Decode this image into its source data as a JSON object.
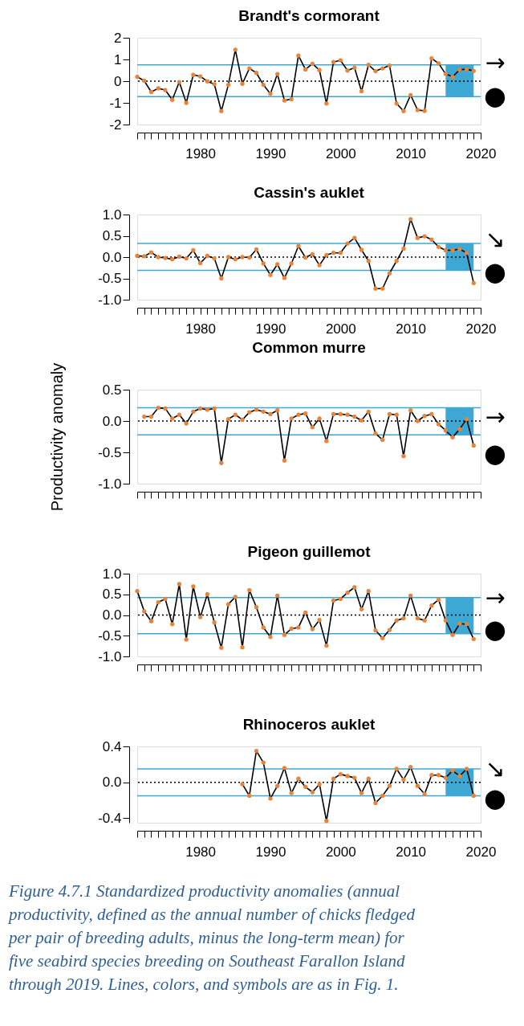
{
  "chart_data": [
    {
      "type": "line",
      "title": "Brandt's cormorant",
      "x": [
        1971,
        1972,
        1973,
        1974,
        1975,
        1976,
        1977,
        1978,
        1979,
        1980,
        1981,
        1982,
        1983,
        1984,
        1985,
        1986,
        1987,
        1988,
        1989,
        1990,
        1991,
        1992,
        1993,
        1994,
        1995,
        1996,
        1997,
        1998,
        1999,
        2000,
        2001,
        2002,
        2003,
        2004,
        2005,
        2006,
        2007,
        2008,
        2009,
        2010,
        2011,
        2012,
        2013,
        2014,
        2015,
        2016,
        2017,
        2018,
        2019
      ],
      "series": [
        {
          "type": "line",
          "color": "#000000",
          "values": [
            0.2,
            0.02,
            -0.5,
            -0.33,
            -0.41,
            -0.86,
            -0.04,
            -1.0,
            0.29,
            0.22,
            -0.01,
            -0.14,
            -1.38,
            -0.17,
            1.45,
            -0.12,
            0.59,
            0.38,
            -0.17,
            -0.58,
            0.33,
            -0.89,
            -0.83,
            1.18,
            0.54,
            0.8,
            0.51,
            -1.03,
            0.88,
            0.96,
            0.49,
            0.62,
            -0.46,
            0.75,
            0.46,
            0.59,
            0.72,
            -1.03,
            -1.38,
            -0.64,
            -1.33,
            -1.37,
            1.05,
            0.82,
            0.33,
            0.2,
            0.53,
            0.55,
            0.47
          ],
          "colors": [
            "#e8833a",
            "#e8833a",
            "#e8833a",
            "#e8833a",
            "#e8833a",
            "#e8833a",
            "#e8833a",
            "#e8833a",
            "#e8833a",
            "#e8833a",
            "#e8833a",
            "#e8833a",
            "#e8833a",
            "#e8833a",
            "#e8833a",
            "#e8833a",
            "#e8833a",
            "#e8833a",
            "#e8833a",
            "#e8833a",
            "#e8833a",
            "#e8833a",
            "#e8833a",
            "#e8833a",
            "#e8833a",
            "#e8833a",
            "#e8833a",
            "#e8833a",
            "#e8833a",
            "#e8833a",
            "#e8833a",
            "#e8833a",
            "#e8833a",
            "#e8833a",
            "#e8833a",
            "#e8833a",
            "#e8833a",
            "#e8833a",
            "#e8833a",
            "#e8833a",
            "#e8833a",
            "#e8833a",
            "#e8833a",
            "#e8833a",
            "#e8833a",
            "#e8833a",
            "#e8833a",
            "#e8833a",
            "#e8833a"
          ]
        }
      ],
      "xlim": [
        1971,
        2020
      ],
      "xticks": [
        {
          "value": 1971,
          "label": null
        },
        {
          "value": 1972,
          "label": null
        },
        {
          "value": 1973,
          "label": null
        },
        {
          "value": 1974,
          "label": null
        },
        {
          "value": 1975,
          "label": null
        },
        {
          "value": 1976,
          "label": null
        },
        {
          "value": 1977,
          "label": null
        },
        {
          "value": 1978,
          "label": null
        },
        {
          "value": 1979,
          "label": null
        },
        1980,
        {
          "value": 1981,
          "label": null
        },
        {
          "value": 1982,
          "label": null
        },
        {
          "value": 1983,
          "label": null
        },
        {
          "value": 1984,
          "label": null
        },
        {
          "value": 1985,
          "label": null
        },
        {
          "value": 1986,
          "label": null
        },
        {
          "value": 1987,
          "label": null
        },
        {
          "value": 1988,
          "label": null
        },
        {
          "value": 1989,
          "label": null
        },
        1990,
        {
          "value": 1991,
          "label": null
        },
        {
          "value": 1992,
          "label": null
        },
        {
          "value": 1993,
          "label": null
        },
        {
          "value": 1994,
          "label": null
        },
        {
          "value": 1995,
          "label": null
        },
        {
          "value": 1996,
          "label": null
        },
        {
          "value": 1997,
          "label": null
        },
        {
          "value": 1998,
          "label": null
        },
        {
          "value": 1999,
          "label": null
        },
        2000,
        {
          "value": 2001,
          "label": null
        },
        {
          "value": 2002,
          "label": null
        },
        {
          "value": 2003,
          "label": null
        },
        {
          "value": 2004,
          "label": null
        },
        {
          "value": 2005,
          "label": null
        },
        {
          "value": 2006,
          "label": null
        },
        {
          "value": 2007,
          "label": null
        },
        {
          "value": 2008,
          "label": null
        },
        {
          "value": 2009,
          "label": null
        },
        2010,
        {
          "value": 2011,
          "label": null
        },
        {
          "value": 2012,
          "label": null
        },
        {
          "value": 2013,
          "label": null
        },
        {
          "value": 2014,
          "label": null
        },
        {
          "value": 2015,
          "label": null
        },
        {
          "value": 2016,
          "label": null
        },
        {
          "value": 2017,
          "label": null
        },
        {
          "value": 2018,
          "label": null
        },
        {
          "value": 2019,
          "label": null
        },
        2020
      ],
      "ylim": [
        -2,
        2
      ],
      "yticks": [
        -2,
        -1,
        0,
        1,
        2
      ],
      "ref_lines": [
        {
          "axis": "y",
          "value": 0.75,
          "color": "#3ea8d5",
          "line_style": "solid"
        },
        {
          "axis": "y",
          "value": -0.71,
          "color": "#3ea8d5",
          "line_style": "solid"
        },
        {
          "axis": "y",
          "value": 0,
          "color": "#000000",
          "line_style": "dotted"
        }
      ],
      "bands": [
        {
          "axis": "x",
          "from": 2015,
          "to": 2019,
          "color": "#3ea8d5"
        }
      ],
      "annotations": [
        "→",
        "●"
      ],
      "grid": false,
      "legend": false
    },
    {
      "type": "line",
      "title": "Cassin's auklet",
      "x": [
        1971,
        1972,
        1973,
        1974,
        1975,
        1976,
        1977,
        1978,
        1979,
        1980,
        1981,
        1982,
        1983,
        1984,
        1985,
        1986,
        1987,
        1988,
        1989,
        1990,
        1991,
        1992,
        1993,
        1994,
        1995,
        1996,
        1997,
        1998,
        1999,
        2000,
        2001,
        2002,
        2003,
        2004,
        2005,
        2006,
        2007,
        2008,
        2009,
        2010,
        2011,
        2012,
        2013,
        2014,
        2015,
        2016,
        2017,
        2018,
        2019
      ],
      "series": [
        {
          "type": "line",
          "color": "#000000",
          "values": [
            0.03,
            0.02,
            0.11,
            0.0,
            -0.02,
            -0.05,
            0.01,
            -0.03,
            0.16,
            -0.14,
            0.03,
            -0.03,
            -0.5,
            0.0,
            -0.05,
            0.0,
            -0.01,
            0.18,
            -0.15,
            -0.42,
            -0.17,
            -0.49,
            -0.15,
            0.26,
            -0.01,
            0.07,
            -0.19,
            0.05,
            0.1,
            0.1,
            0.32,
            0.45,
            0.17,
            -0.09,
            -0.74,
            -0.74,
            -0.38,
            -0.09,
            0.2,
            0.89,
            0.45,
            0.49,
            0.41,
            0.24,
            0.16,
            0.16,
            0.19,
            0.1,
            -0.61
          ],
          "colors": [
            "#e8833a",
            "#e8833a",
            "#e8833a",
            "#e8833a",
            "#e8833a",
            "#e8833a",
            "#e8833a",
            "#e8833a",
            "#e8833a",
            "#e8833a",
            "#e8833a",
            "#e8833a",
            "#e8833a",
            "#e8833a",
            "#e8833a",
            "#e8833a",
            "#e8833a",
            "#e8833a",
            "#e8833a",
            "#e8833a",
            "#e8833a",
            "#e8833a",
            "#e8833a",
            "#e8833a",
            "#e8833a",
            "#e8833a",
            "#e8833a",
            "#e8833a",
            "#e8833a",
            "#e8833a",
            "#e8833a",
            "#e8833a",
            "#e8833a",
            "#e8833a",
            "#e8833a",
            "#e8833a",
            "#e8833a",
            "#e8833a",
            "#e8833a",
            "#e8833a",
            "#e8833a",
            "#e8833a",
            "#e8833a",
            "#e8833a",
            "#e8833a",
            "#e8833a",
            "#e8833a",
            "#e8833a",
            "#e8833a"
          ]
        }
      ],
      "xlim": [
        1971,
        2020
      ],
      "xticks": [
        {
          "value": 1971,
          "label": null
        },
        {
          "value": 1972,
          "label": null
        },
        {
          "value": 1973,
          "label": null
        },
        {
          "value": 1974,
          "label": null
        },
        {
          "value": 1975,
          "label": null
        },
        {
          "value": 1976,
          "label": null
        },
        {
          "value": 1977,
          "label": null
        },
        {
          "value": 1978,
          "label": null
        },
        {
          "value": 1979,
          "label": null
        },
        1980,
        {
          "value": 1981,
          "label": null
        },
        {
          "value": 1982,
          "label": null
        },
        {
          "value": 1983,
          "label": null
        },
        {
          "value": 1984,
          "label": null
        },
        {
          "value": 1985,
          "label": null
        },
        {
          "value": 1986,
          "label": null
        },
        {
          "value": 1987,
          "label": null
        },
        {
          "value": 1988,
          "label": null
        },
        {
          "value": 1989,
          "label": null
        },
        1990,
        {
          "value": 1991,
          "label": null
        },
        {
          "value": 1992,
          "label": null
        },
        {
          "value": 1993,
          "label": null
        },
        {
          "value": 1994,
          "label": null
        },
        {
          "value": 1995,
          "label": null
        },
        {
          "value": 1996,
          "label": null
        },
        {
          "value": 1997,
          "label": null
        },
        {
          "value": 1998,
          "label": null
        },
        {
          "value": 1999,
          "label": null
        },
        2000,
        {
          "value": 2001,
          "label": null
        },
        {
          "value": 2002,
          "label": null
        },
        {
          "value": 2003,
          "label": null
        },
        {
          "value": 2004,
          "label": null
        },
        {
          "value": 2005,
          "label": null
        },
        {
          "value": 2006,
          "label": null
        },
        {
          "value": 2007,
          "label": null
        },
        {
          "value": 2008,
          "label": null
        },
        {
          "value": 2009,
          "label": null
        },
        2010,
        {
          "value": 2011,
          "label": null
        },
        {
          "value": 2012,
          "label": null
        },
        {
          "value": 2013,
          "label": null
        },
        {
          "value": 2014,
          "label": null
        },
        {
          "value": 2015,
          "label": null
        },
        {
          "value": 2016,
          "label": null
        },
        {
          "value": 2017,
          "label": null
        },
        {
          "value": 2018,
          "label": null
        },
        {
          "value": 2019,
          "label": null
        },
        2020
      ],
      "ylim": [
        -1,
        1
      ],
      "yticks": [
        {
          "value": -1,
          "label": "-1.0"
        },
        -0.5,
        {
          "value": 0,
          "label": "0.0"
        },
        0.5,
        {
          "value": 1,
          "label": "1.0"
        }
      ],
      "ref_lines": [
        {
          "axis": "y",
          "value": 0.32,
          "color": "#3ea8d5",
          "line_style": "solid"
        },
        {
          "axis": "y",
          "value": -0.31,
          "color": "#3ea8d5",
          "line_style": "solid"
        },
        {
          "axis": "y",
          "value": 0,
          "color": "#000000",
          "line_style": "dotted"
        }
      ],
      "bands": [
        {
          "axis": "x",
          "from": 2015,
          "to": 2019,
          "color": "#3ea8d5"
        }
      ],
      "annotations": [
        "↘",
        "●"
      ],
      "grid": false,
      "legend": false
    },
    {
      "type": "line",
      "title": "Common murre",
      "ylabel": "Productivity anomaly",
      "tick_labels": "y",
      "series": [
        {
          "type": "line",
          "color": "#000000",
          "x": [
            1972,
            1973,
            1974,
            1975,
            1976,
            1977,
            1978,
            1979,
            1980,
            1981,
            1982,
            1983,
            1984,
            1985,
            1986,
            1987,
            1988,
            1989,
            1990,
            1991,
            1992,
            1993,
            1994,
            1995,
            1996,
            1997,
            1998,
            1999,
            2000,
            2001,
            2002,
            2003,
            2004,
            2005,
            2006,
            2007,
            2008,
            2009,
            2010,
            2011,
            2012,
            2013,
            2014,
            2015,
            2016,
            2017,
            2018,
            2019
          ],
          "values": [
            0.07,
            0.07,
            0.21,
            0.2,
            0.04,
            0.1,
            -0.04,
            0.15,
            0.2,
            0.18,
            0.2,
            -0.67,
            0.03,
            0.1,
            0.02,
            0.14,
            0.18,
            0.15,
            0.11,
            0.17,
            -0.63,
            0.04,
            0.1,
            0.12,
            -0.1,
            0.04,
            -0.32,
            0.11,
            0.11,
            0.1,
            0.07,
            0.01,
            0.15,
            -0.2,
            -0.3,
            0.11,
            0.1,
            -0.56,
            0.17,
            0.0,
            0.08,
            0.11,
            -0.05,
            -0.15,
            -0.26,
            -0.13,
            0.03,
            -0.39
          ],
          "colors": [
            "#e8833a",
            "#e8833a",
            "#e8833a",
            "#e8833a",
            "#e8833a",
            "#e8833a",
            "#e8833a",
            "#e8833a",
            "#e8833a",
            "#e8833a",
            "#e8833a",
            "#e8833a",
            "#e8833a",
            "#e8833a",
            "#e8833a",
            "#e8833a",
            "#e8833a",
            "#e8833a",
            "#e8833a",
            "#e8833a",
            "#e8833a",
            "#e8833a",
            "#e8833a",
            "#e8833a",
            "#e8833a",
            "#e8833a",
            "#e8833a",
            "#e8833a",
            "#e8833a",
            "#e8833a",
            "#e8833a",
            "#e8833a",
            "#e8833a",
            "#e8833a",
            "#e8833a",
            "#e8833a",
            "#e8833a",
            "#e8833a",
            "#e8833a",
            "#e8833a",
            "#e8833a",
            "#e8833a",
            "#e8833a",
            "#e8833a",
            "#e8833a",
            "#e8833a",
            "#e8833a",
            "#e8833a"
          ]
        }
      ],
      "xlim": [
        1971,
        2020
      ],
      "xticks": [
        {
          "value": 1971,
          "label": null
        },
        {
          "value": 1972,
          "label": null
        },
        {
          "value": 1973,
          "label": null
        },
        {
          "value": 1974,
          "label": null
        },
        {
          "value": 1975,
          "label": null
        },
        {
          "value": 1976,
          "label": null
        },
        {
          "value": 1977,
          "label": null
        },
        {
          "value": 1978,
          "label": null
        },
        {
          "value": 1979,
          "label": null
        },
        1980,
        {
          "value": 1981,
          "label": null
        },
        {
          "value": 1982,
          "label": null
        },
        {
          "value": 1983,
          "label": null
        },
        {
          "value": 1984,
          "label": null
        },
        {
          "value": 1985,
          "label": null
        },
        {
          "value": 1986,
          "label": null
        },
        {
          "value": 1987,
          "label": null
        },
        {
          "value": 1988,
          "label": null
        },
        {
          "value": 1989,
          "label": null
        },
        1990,
        {
          "value": 1991,
          "label": null
        },
        {
          "value": 1992,
          "label": null
        },
        {
          "value": 1993,
          "label": null
        },
        {
          "value": 1994,
          "label": null
        },
        {
          "value": 1995,
          "label": null
        },
        {
          "value": 1996,
          "label": null
        },
        {
          "value": 1997,
          "label": null
        },
        {
          "value": 1998,
          "label": null
        },
        {
          "value": 1999,
          "label": null
        },
        2000,
        {
          "value": 2001,
          "label": null
        },
        {
          "value": 2002,
          "label": null
        },
        {
          "value": 2003,
          "label": null
        },
        {
          "value": 2004,
          "label": null
        },
        {
          "value": 2005,
          "label": null
        },
        {
          "value": 2006,
          "label": null
        },
        {
          "value": 2007,
          "label": null
        },
        {
          "value": 2008,
          "label": null
        },
        {
          "value": 2009,
          "label": null
        },
        2010,
        {
          "value": 2011,
          "label": null
        },
        {
          "value": 2012,
          "label": null
        },
        {
          "value": 2013,
          "label": null
        },
        {
          "value": 2014,
          "label": null
        },
        {
          "value": 2015,
          "label": null
        },
        {
          "value": 2016,
          "label": null
        },
        {
          "value": 2017,
          "label": null
        },
        {
          "value": 2018,
          "label": null
        },
        {
          "value": 2019,
          "label": null
        },
        2020
      ],
      "ylim": [
        -1,
        0.5
      ],
      "yticks": [
        {
          "value": -1,
          "label": "-1.0"
        },
        -0.5,
        {
          "value": 0,
          "label": "0.0"
        },
        0.5
      ],
      "ref_lines": [
        {
          "axis": "y",
          "value": 0.21,
          "color": "#3ea8d5",
          "line_style": "solid"
        },
        {
          "axis": "y",
          "value": -0.22,
          "color": "#3ea8d5",
          "line_style": "solid"
        },
        {
          "axis": "y",
          "value": 0,
          "color": "#000000",
          "line_style": "dotted"
        }
      ],
      "bands": [
        {
          "axis": "x",
          "from": 2015,
          "to": 2019,
          "color": "#3ea8d5"
        }
      ],
      "annotations": [
        "→",
        "●"
      ],
      "grid": false,
      "legend": false
    },
    {
      "type": "line",
      "title": "Pigeon guillemot",
      "tick_labels": "y",
      "x": [
        1971,
        1972,
        1973,
        1974,
        1975,
        1976,
        1977,
        1978,
        1979,
        1980,
        1981,
        1982,
        1983,
        1984,
        1985,
        1986,
        1987,
        1988,
        1989,
        1990,
        1991,
        1992,
        1993,
        1994,
        1995,
        1996,
        1997,
        1998,
        1999,
        2000,
        2001,
        2002,
        2003,
        2004,
        2005,
        2006,
        2007,
        2008,
        2009,
        2010,
        2011,
        2012,
        2013,
        2014,
        2015,
        2016,
        2017,
        2018,
        2019
      ],
      "series": [
        {
          "type": "line",
          "color": "#000000",
          "values": [
            0.58,
            0.09,
            -0.15,
            0.31,
            0.39,
            -0.22,
            0.75,
            -0.59,
            0.69,
            -0.05,
            0.5,
            -0.18,
            -0.79,
            0.26,
            0.44,
            -0.78,
            0.6,
            0.19,
            -0.3,
            -0.53,
            0.47,
            -0.48,
            -0.33,
            -0.3,
            0.06,
            -0.34,
            -0.12,
            -0.74,
            0.35,
            0.39,
            0.54,
            0.67,
            0.14,
            0.58,
            -0.37,
            -0.56,
            -0.36,
            -0.13,
            -0.08,
            0.47,
            -0.08,
            -0.13,
            0.23,
            0.37,
            -0.13,
            -0.48,
            -0.21,
            -0.22,
            -0.58
          ],
          "colors": [
            "#e8833a",
            "#e8833a",
            "#e8833a",
            "#e8833a",
            "#e8833a",
            "#e8833a",
            "#e8833a",
            "#e8833a",
            "#e8833a",
            "#e8833a",
            "#e8833a",
            "#e8833a",
            "#e8833a",
            "#e8833a",
            "#e8833a",
            "#e8833a",
            "#e8833a",
            "#e8833a",
            "#e8833a",
            "#e8833a",
            "#e8833a",
            "#e8833a",
            "#e8833a",
            "#e8833a",
            "#e8833a",
            "#e8833a",
            "#e8833a",
            "#e8833a",
            "#e8833a",
            "#e8833a",
            "#e8833a",
            "#e8833a",
            "#e8833a",
            "#e8833a",
            "#e8833a",
            "#e8833a",
            "#e8833a",
            "#e8833a",
            "#e8833a",
            "#e8833a",
            "#e8833a",
            "#e8833a",
            "#e8833a",
            "#e8833a",
            "#e8833a",
            "#e8833a",
            "#e8833a",
            "#e8833a",
            "#e8833a"
          ]
        }
      ],
      "xlim": [
        1971,
        2020
      ],
      "xticks": [
        {
          "value": 1971,
          "label": null
        },
        {
          "value": 1972,
          "label": null
        },
        {
          "value": 1973,
          "label": null
        },
        {
          "value": 1974,
          "label": null
        },
        {
          "value": 1975,
          "label": null
        },
        {
          "value": 1976,
          "label": null
        },
        {
          "value": 1977,
          "label": null
        },
        {
          "value": 1978,
          "label": null
        },
        {
          "value": 1979,
          "label": null
        },
        1980,
        {
          "value": 1981,
          "label": null
        },
        {
          "value": 1982,
          "label": null
        },
        {
          "value": 1983,
          "label": null
        },
        {
          "value": 1984,
          "label": null
        },
        {
          "value": 1985,
          "label": null
        },
        {
          "value": 1986,
          "label": null
        },
        {
          "value": 1987,
          "label": null
        },
        {
          "value": 1988,
          "label": null
        },
        {
          "value": 1989,
          "label": null
        },
        1990,
        {
          "value": 1991,
          "label": null
        },
        {
          "value": 1992,
          "label": null
        },
        {
          "value": 1993,
          "label": null
        },
        {
          "value": 1994,
          "label": null
        },
        {
          "value": 1995,
          "label": null
        },
        {
          "value": 1996,
          "label": null
        },
        {
          "value": 1997,
          "label": null
        },
        {
          "value": 1998,
          "label": null
        },
        {
          "value": 1999,
          "label": null
        },
        2000,
        {
          "value": 2001,
          "label": null
        },
        {
          "value": 2002,
          "label": null
        },
        {
          "value": 2003,
          "label": null
        },
        {
          "value": 2004,
          "label": null
        },
        {
          "value": 2005,
          "label": null
        },
        {
          "value": 2006,
          "label": null
        },
        {
          "value": 2007,
          "label": null
        },
        {
          "value": 2008,
          "label": null
        },
        {
          "value": 2009,
          "label": null
        },
        2010,
        {
          "value": 2011,
          "label": null
        },
        {
          "value": 2012,
          "label": null
        },
        {
          "value": 2013,
          "label": null
        },
        {
          "value": 2014,
          "label": null
        },
        {
          "value": 2015,
          "label": null
        },
        {
          "value": 2016,
          "label": null
        },
        {
          "value": 2017,
          "label": null
        },
        {
          "value": 2018,
          "label": null
        },
        {
          "value": 2019,
          "label": null
        },
        2020
      ],
      "ylim": [
        -1,
        1
      ],
      "yticks": [
        {
          "value": -1,
          "label": "-1.0"
        },
        -0.5,
        {
          "value": 0,
          "label": "0.0"
        },
        0.5,
        {
          "value": 1,
          "label": "1.0"
        }
      ],
      "ref_lines": [
        {
          "axis": "y",
          "value": 0.42,
          "color": "#3ea8d5",
          "line_style": "solid"
        },
        {
          "axis": "y",
          "value": -0.45,
          "color": "#3ea8d5",
          "line_style": "solid"
        },
        {
          "axis": "y",
          "value": 0,
          "color": "#000000",
          "line_style": "dotted"
        }
      ],
      "bands": [
        {
          "axis": "x",
          "from": 2015,
          "to": 2019,
          "color": "#3ea8d5"
        }
      ],
      "annotations": [
        "→",
        "●"
      ],
      "grid": false,
      "legend": false
    },
    {
      "type": "line",
      "title": "Rhinoceros auklet",
      "series": [
        {
          "type": "line",
          "color": "#000000",
          "x": [
            1986,
            1987,
            1988,
            1989,
            1990,
            1991,
            1992,
            1993,
            1994,
            1995,
            1996,
            1997,
            1998,
            1999,
            2000,
            2001,
            2002,
            2003,
            2004,
            2005,
            2006,
            2007,
            2008,
            2009,
            2010,
            2011,
            2012,
            2013,
            2014,
            2015,
            2016,
            2017,
            2018,
            2019
          ],
          "values": [
            -0.02,
            -0.15,
            0.35,
            0.22,
            -0.18,
            -0.04,
            0.16,
            -0.12,
            0.04,
            -0.05,
            -0.11,
            -0.02,
            -0.43,
            0.04,
            0.09,
            0.07,
            0.05,
            -0.12,
            0.04,
            -0.23,
            -0.15,
            -0.04,
            0.15,
            0.03,
            0.17,
            -0.04,
            -0.13,
            0.08,
            0.08,
            0.05,
            0.13,
            0.07,
            0.15,
            -0.15
          ],
          "colors": [
            "#e8833a",
            "#e8833a",
            "#e8833a",
            "#e8833a",
            "#e8833a",
            "#e8833a",
            "#e8833a",
            "#e8833a",
            "#e8833a",
            "#e8833a",
            "#e8833a",
            "#e8833a",
            "#e8833a",
            "#e8833a",
            "#e8833a",
            "#e8833a",
            "#e8833a",
            "#e8833a",
            "#e8833a",
            "#e8833a",
            "#e8833a",
            "#e8833a",
            "#e8833a",
            "#e8833a",
            "#e8833a",
            "#e8833a",
            "#e8833a",
            "#e8833a",
            "#e8833a",
            "#e8833a",
            "#e8833a",
            "#e8833a",
            "#e8833a",
            "#e8833a"
          ]
        }
      ],
      "xlim": [
        1971,
        2020
      ],
      "xticks": [
        {
          "value": 1971,
          "label": null
        },
        {
          "value": 1972,
          "label": null
        },
        {
          "value": 1973,
          "label": null
        },
        {
          "value": 1974,
          "label": null
        },
        {
          "value": 1975,
          "label": null
        },
        {
          "value": 1976,
          "label": null
        },
        {
          "value": 1977,
          "label": null
        },
        {
          "value": 1978,
          "label": null
        },
        {
          "value": 1979,
          "label": null
        },
        1980,
        {
          "value": 1981,
          "label": null
        },
        {
          "value": 1982,
          "label": null
        },
        {
          "value": 1983,
          "label": null
        },
        {
          "value": 1984,
          "label": null
        },
        {
          "value": 1985,
          "label": null
        },
        {
          "value": 1986,
          "label": null
        },
        {
          "value": 1987,
          "label": null
        },
        {
          "value": 1988,
          "label": null
        },
        {
          "value": 1989,
          "label": null
        },
        1990,
        {
          "value": 1991,
          "label": null
        },
        {
          "value": 1992,
          "label": null
        },
        {
          "value": 1993,
          "label": null
        },
        {
          "value": 1994,
          "label": null
        },
        {
          "value": 1995,
          "label": null
        },
        {
          "value": 1996,
          "label": null
        },
        {
          "value": 1997,
          "label": null
        },
        {
          "value": 1998,
          "label": null
        },
        {
          "value": 1999,
          "label": null
        },
        2000,
        {
          "value": 2001,
          "label": null
        },
        {
          "value": 2002,
          "label": null
        },
        {
          "value": 2003,
          "label": null
        },
        {
          "value": 2004,
          "label": null
        },
        {
          "value": 2005,
          "label": null
        },
        {
          "value": 2006,
          "label": null
        },
        {
          "value": 2007,
          "label": null
        },
        {
          "value": 2008,
          "label": null
        },
        {
          "value": 2009,
          "label": null
        },
        2010,
        {
          "value": 2011,
          "label": null
        },
        {
          "value": 2012,
          "label": null
        },
        {
          "value": 2013,
          "label": null
        },
        {
          "value": 2014,
          "label": null
        },
        {
          "value": 2015,
          "label": null
        },
        {
          "value": 2016,
          "label": null
        },
        {
          "value": 2017,
          "label": null
        },
        {
          "value": 2018,
          "label": null
        },
        {
          "value": 2019,
          "label": null
        },
        2020
      ],
      "ylim": [
        -0.45,
        0.4
      ],
      "yticks": [
        -0.4,
        {
          "value": 0,
          "label": "0.0"
        },
        0.4
      ],
      "ref_lines": [
        {
          "axis": "y",
          "value": 0.15,
          "color": "#3ea8d5",
          "line_style": "solid"
        },
        {
          "axis": "y",
          "value": -0.15,
          "color": "#3ea8d5",
          "line_style": "solid"
        },
        {
          "axis": "y",
          "value": 0,
          "color": "#000000",
          "line_style": "dotted"
        }
      ],
      "bands": [
        {
          "axis": "x",
          "from": 2015,
          "to": 2019,
          "color": "#3ea8d5"
        }
      ],
      "grid": false,
      "legend": false,
      "annotations": [
        "↘",
        "●",
        "Figure 4.7.1 Standardized productivity anomalies (annual productivity, defined as the annual number of chicks fledged per pair of breeding adults, minus the long-term mean) for five seabird species breeding on Southeast Farallon Island through 2019. Lines, colors, and symbols are as in Fig. 1."
      ]
    }
  ]
}
